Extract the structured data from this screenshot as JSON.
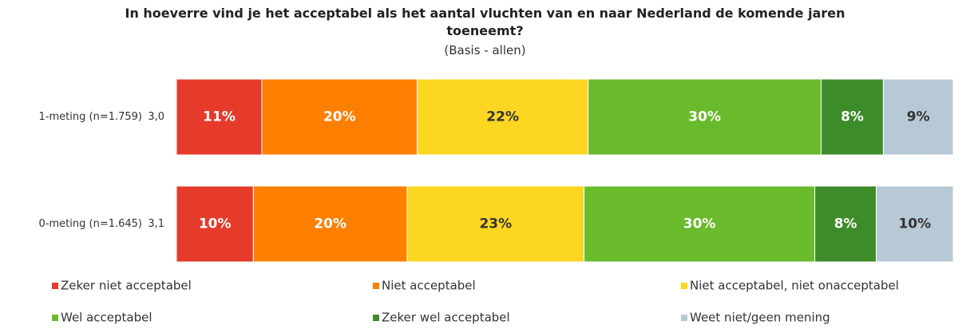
{
  "chart_data": {
    "type": "stacked-bar-100",
    "title": "In hoeverre vind je het acceptabel als het aantal vluchten van en naar Nederland de komende jaren toeneemt?",
    "subtitle": "(Basis - allen)",
    "categories": [
      "1-meting (n=1.759)",
      "0-meting (n=1.645)"
    ],
    "mean_labels": [
      "3,0",
      "3,1"
    ],
    "series": [
      {
        "name": "Zeker niet acceptabel",
        "color": "#e63a2a",
        "values": [
          11,
          10
        ],
        "value_labels": [
          "11%",
          "10%"
        ]
      },
      {
        "name": "Niet acceptabel",
        "color": "#ff8000",
        "values": [
          20,
          20
        ],
        "value_labels": [
          "20%",
          "20%"
        ]
      },
      {
        "name": "Niet acceptabel, niet onacceptabel",
        "color": "#fcd621",
        "values": [
          22,
          23
        ],
        "value_labels": [
          "22%",
          "23%"
        ]
      },
      {
        "name": "Wel acceptabel",
        "color": "#6aba2d",
        "values": [
          30,
          30
        ],
        "value_labels": [
          "30%",
          "30%"
        ]
      },
      {
        "name": "Zeker wel acceptabel",
        "color": "#3e8b2a",
        "values": [
          8,
          8
        ],
        "value_labels": [
          "8%",
          "8%"
        ]
      },
      {
        "name": "Weet niet/geen mening",
        "color": "#b8c9d6",
        "values": [
          9,
          10
        ],
        "value_labels": [
          "9%",
          "10%"
        ]
      }
    ],
    "legend": "bottom"
  }
}
